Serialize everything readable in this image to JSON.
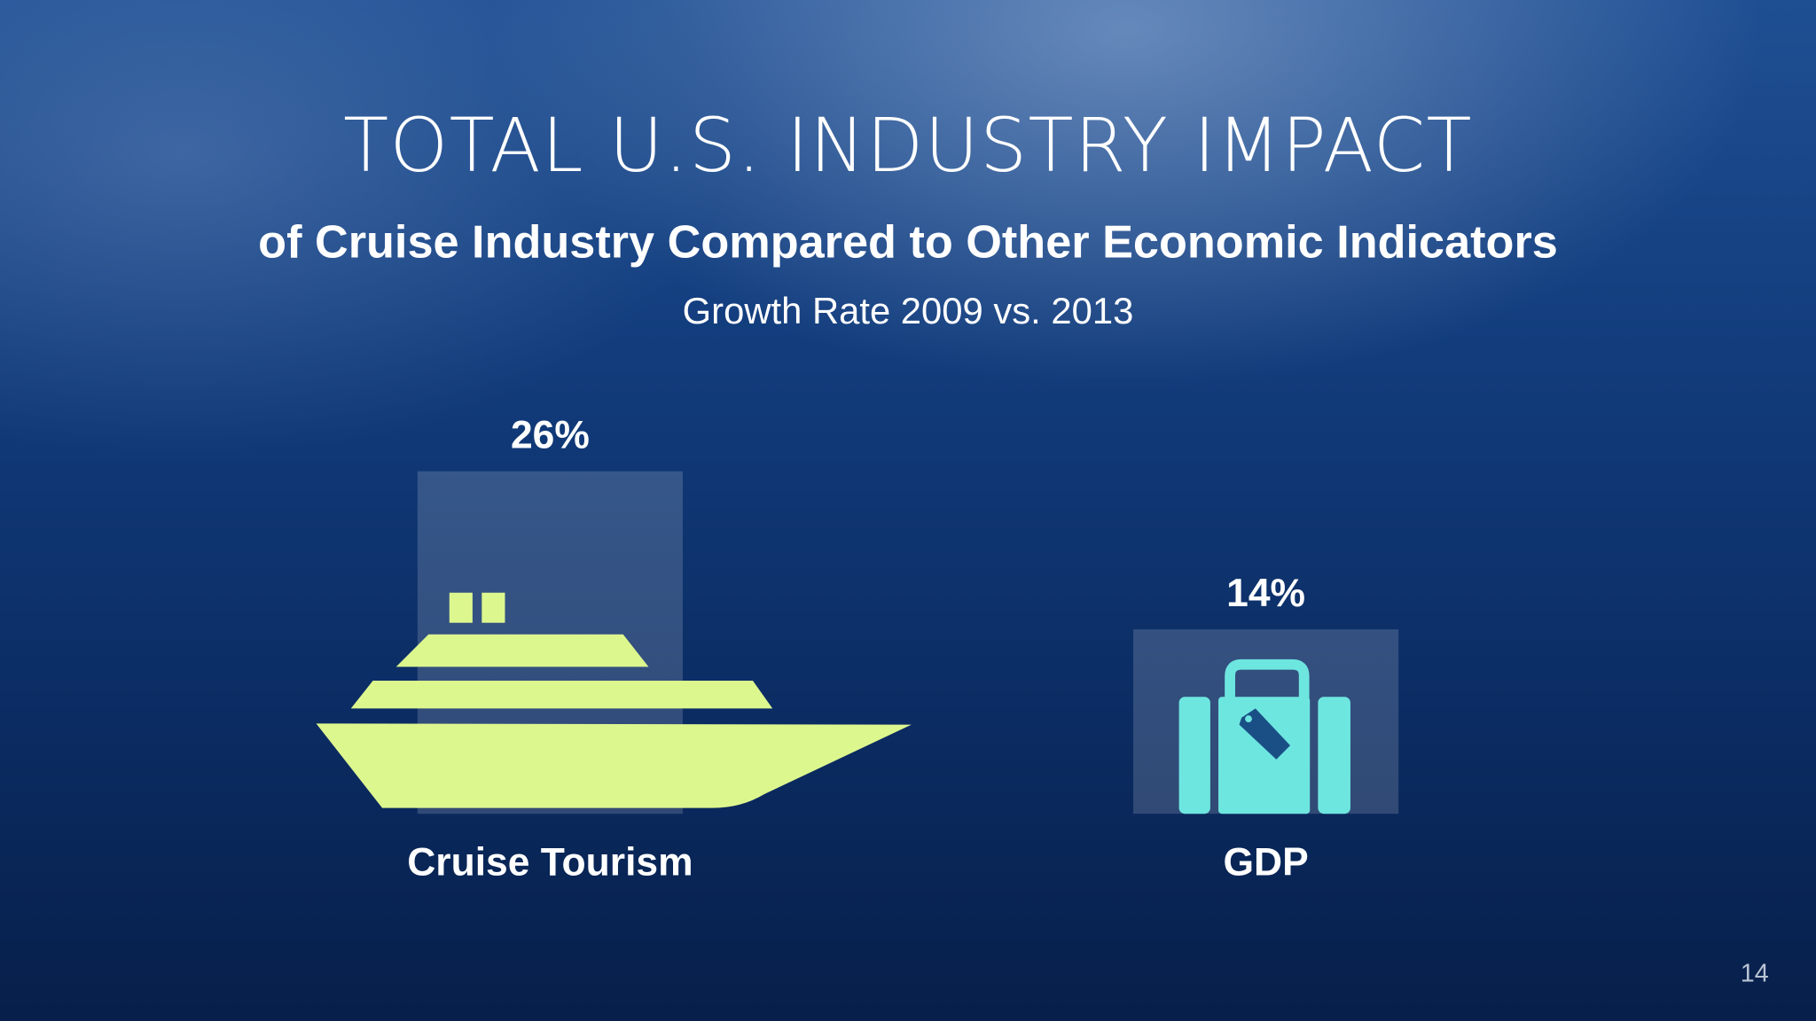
{
  "chart_data": {
    "type": "bar",
    "title": "TOTAL U.S. INDUSTRY IMPACT",
    "subtitle": "of Cruise Industry Compared to Other Economic Indicators",
    "caption": "Growth Rate 2009 vs. 2013",
    "categories": [
      "Cruise Tourism",
      "GDP"
    ],
    "values": [
      26,
      14
    ],
    "value_labels": [
      "26%",
      "14%"
    ],
    "color": "rgba(255,255,255,0.16)"
  },
  "page_number": "14"
}
